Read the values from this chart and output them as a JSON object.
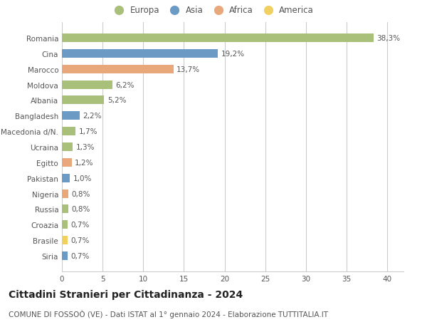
{
  "categories": [
    "Siria",
    "Brasile",
    "Croazia",
    "Russia",
    "Nigeria",
    "Pakistan",
    "Egitto",
    "Ucraina",
    "Macedonia d/N.",
    "Bangladesh",
    "Albania",
    "Moldova",
    "Marocco",
    "Cina",
    "Romania"
  ],
  "values": [
    0.7,
    0.7,
    0.7,
    0.8,
    0.8,
    1.0,
    1.2,
    1.3,
    1.7,
    2.2,
    5.2,
    6.2,
    13.7,
    19.2,
    38.3
  ],
  "labels": [
    "0,7%",
    "0,7%",
    "0,7%",
    "0,8%",
    "0,8%",
    "1,0%",
    "1,2%",
    "1,3%",
    "1,7%",
    "2,2%",
    "5,2%",
    "6,2%",
    "13,7%",
    "19,2%",
    "38,3%"
  ],
  "continents": [
    "Asia",
    "America",
    "Europa",
    "Europa",
    "Africa",
    "Asia",
    "Africa",
    "Europa",
    "Europa",
    "Asia",
    "Europa",
    "Europa",
    "Africa",
    "Asia",
    "Europa"
  ],
  "colors": {
    "Europa": "#a8c07a",
    "Asia": "#6b9ac4",
    "Africa": "#e8a87c",
    "America": "#f0d060"
  },
  "legend_order": [
    "Europa",
    "Asia",
    "Africa",
    "America"
  ],
  "xlim": [
    0,
    42
  ],
  "xticks": [
    0,
    5,
    10,
    15,
    20,
    25,
    30,
    35,
    40
  ],
  "title": "Cittadini Stranieri per Cittadinanza - 2024",
  "subtitle": "COMUNE DI FOSSOÒ (VE) - Dati ISTAT al 1° gennaio 2024 - Elaborazione TUTTITALIA.IT",
  "background_color": "#ffffff",
  "grid_color": "#cccccc",
  "bar_height": 0.55,
  "label_fontsize": 7.5,
  "title_fontsize": 10,
  "subtitle_fontsize": 7.5,
  "ytick_fontsize": 7.5,
  "xtick_fontsize": 7.5,
  "legend_fontsize": 8.5
}
